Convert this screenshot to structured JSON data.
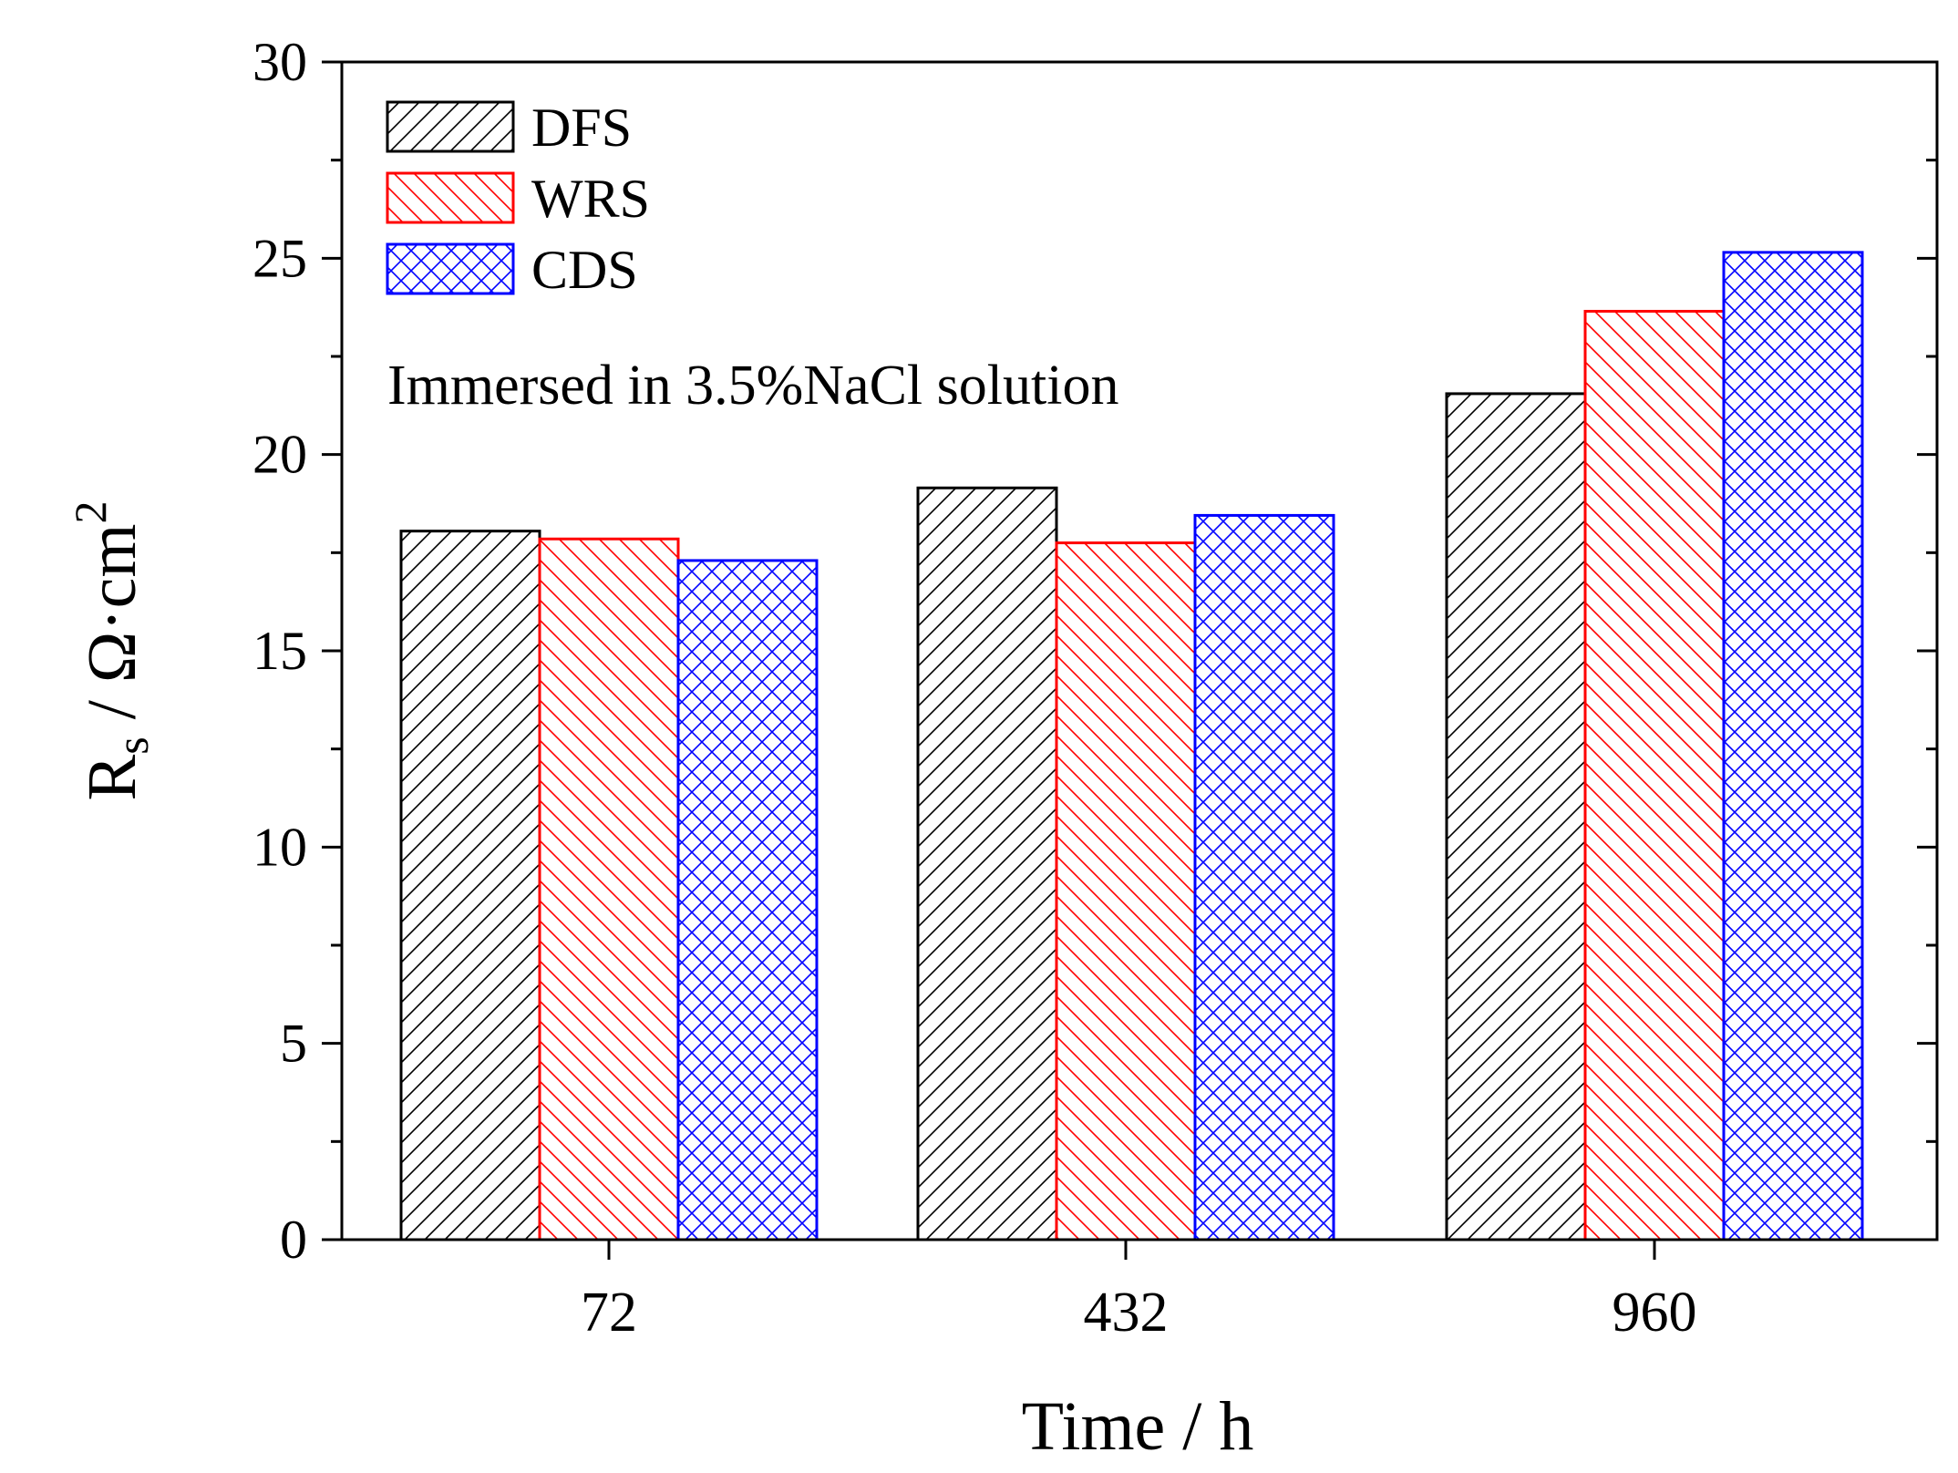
{
  "chart_data": {
    "type": "bar",
    "title": "",
    "annotation": "Immersed in 3.5%NaCl solution",
    "xlabel": "Time / h",
    "ylabel": {
      "main": "R",
      "subscript": "s",
      "unit": " / Ω·cm",
      "superscript": "2"
    },
    "categories": [
      "72",
      "432",
      "960"
    ],
    "ylim": [
      0,
      30
    ],
    "yticks": [
      0,
      5,
      10,
      15,
      20,
      25,
      30
    ],
    "yticks_labels": [
      "0",
      "5",
      "10",
      "15",
      "20",
      "25",
      "30"
    ],
    "grid": false,
    "legend_position": "top-left",
    "series": [
      {
        "name": "DFS",
        "color": "#000000",
        "pattern": "diagonal-forward",
        "values": [
          18.05,
          19.15,
          21.55
        ]
      },
      {
        "name": "WRS",
        "color": "#ff0000",
        "pattern": "diagonal-backward",
        "values": [
          17.85,
          17.75,
          23.65
        ]
      },
      {
        "name": "CDS",
        "color": "#0000ff",
        "pattern": "crosshatch",
        "values": [
          17.3,
          18.45,
          25.15
        ]
      }
    ]
  }
}
